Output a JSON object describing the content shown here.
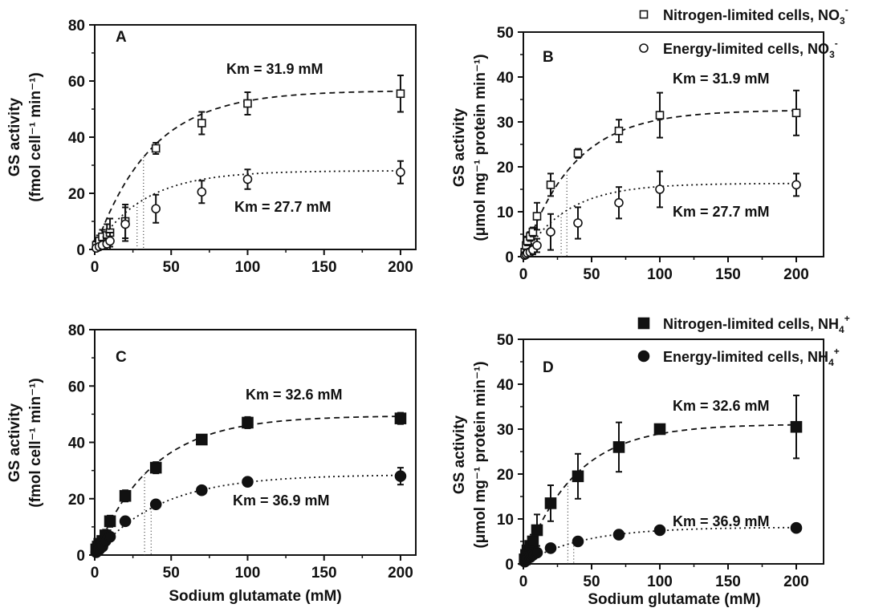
{
  "chart_data": [
    {
      "type": "scatter",
      "panel": "A",
      "xlabel": "",
      "ylabel": "GS activity",
      "ylabel_unit": "(fmol cell⁻¹ min⁻¹)",
      "xlim": [
        0,
        210
      ],
      "ylim": [
        0,
        80
      ],
      "x_ticks": [
        0,
        50,
        100,
        150,
        200
      ],
      "y_ticks": [
        0,
        20,
        40,
        60,
        80
      ],
      "series": [
        {
          "marker": "open-square",
          "fit": "dashed",
          "km": 31.9,
          "x": [
            1,
            3,
            5,
            8,
            10,
            20,
            40,
            70,
            100,
            200
          ],
          "y": [
            1.5,
            3,
            4.5,
            5,
            6,
            10,
            36,
            45,
            52,
            55.5
          ],
          "err": [
            1.5,
            2,
            2.5,
            4,
            5,
            6,
            2,
            4,
            4,
            6.5
          ]
        },
        {
          "marker": "open-circle",
          "fit": "dotted",
          "km": 27.7,
          "x": [
            1,
            3,
            5,
            8,
            10,
            20,
            40,
            70,
            100,
            200
          ],
          "y": [
            0.5,
            1,
            1.5,
            2,
            3,
            9,
            14.5,
            20.5,
            25,
            27.5
          ],
          "err": [
            1,
            1,
            1.5,
            2,
            3,
            6,
            5,
            4,
            3.5,
            4
          ]
        }
      ],
      "annotations": [
        "Km = 31.9 mM",
        "Km = 27.7 mM"
      ]
    },
    {
      "type": "scatter",
      "panel": "B",
      "xlabel": "",
      "ylabel": "GS activity",
      "ylabel_unit": "(μmol mg⁻¹ protein min⁻¹)",
      "xlim": [
        0,
        220
      ],
      "ylim": [
        0,
        50
      ],
      "x_ticks": [
        0,
        50,
        100,
        150,
        200
      ],
      "y_ticks": [
        0,
        10,
        20,
        30,
        40,
        50
      ],
      "series": [
        {
          "name": "Nitrogen-limited cells, NO3-",
          "marker": "open-square",
          "fit": "dashed",
          "km": 31.9,
          "x": [
            1,
            2,
            3,
            5,
            7,
            10,
            20,
            40,
            70,
            100,
            200
          ],
          "y": [
            1,
            2.5,
            3.5,
            4.5,
            5.5,
            9,
            16,
            23,
            28,
            31.5,
            32
          ],
          "err": [
            0.5,
            1,
            1,
            1,
            1,
            3,
            2.5,
            1,
            2.5,
            5,
            5
          ]
        },
        {
          "name": "Energy-limited cells, NO3-",
          "marker": "open-circle",
          "fit": "dotted",
          "km": 27.7,
          "x": [
            1,
            2,
            3,
            5,
            7,
            10,
            20,
            40,
            70,
            100,
            200
          ],
          "y": [
            0.3,
            0.5,
            0.8,
            1,
            1.5,
            2.5,
            5.5,
            7.5,
            12,
            15,
            16
          ],
          "err": [
            0.5,
            0.5,
            0.5,
            0.8,
            1,
            1.5,
            4,
            3.5,
            3.5,
            4,
            2.5
          ]
        }
      ],
      "annotations": [
        "Km = 31.9 mM",
        "Km = 27.7 mM"
      ]
    },
    {
      "type": "scatter",
      "panel": "C",
      "xlabel": "Sodium glutamate (mM)",
      "ylabel": "GS activity",
      "ylabel_unit": "(fmol cell⁻¹ min⁻¹)",
      "xlim": [
        0,
        210
      ],
      "ylim": [
        0,
        80
      ],
      "x_ticks": [
        0,
        50,
        100,
        150,
        200
      ],
      "y_ticks": [
        0,
        20,
        40,
        60,
        80
      ],
      "series": [
        {
          "marker": "filled-square",
          "fit": "dashed",
          "km": 32.6,
          "x": [
            1,
            2,
            3,
            5,
            7,
            10,
            20,
            40,
            70,
            100,
            200
          ],
          "y": [
            2,
            3,
            4,
            5,
            7,
            12,
            21,
            31,
            41,
            47,
            48.5
          ],
          "err": [
            0.5,
            0.5,
            1,
            1,
            2,
            2,
            2,
            2,
            1,
            2,
            2
          ]
        },
        {
          "marker": "filled-circle",
          "fit": "dotted",
          "km": 36.9,
          "x": [
            1,
            2,
            3,
            5,
            7,
            10,
            20,
            40,
            70,
            100,
            200
          ],
          "y": [
            1,
            1.5,
            2,
            3,
            5,
            6.5,
            12,
            18,
            23,
            26,
            28
          ],
          "err": [
            0.5,
            0.5,
            0.5,
            1,
            1,
            1,
            1,
            1,
            1,
            1,
            3
          ]
        }
      ],
      "annotations": [
        "Km = 32.6 mM",
        "Km = 36.9 mM"
      ]
    },
    {
      "type": "scatter",
      "panel": "D",
      "xlabel": "Sodium glutamate (mM)",
      "ylabel": "GS activity",
      "ylabel_unit": "(μmol mg⁻¹ protein min⁻¹)",
      "xlim": [
        0,
        220
      ],
      "ylim": [
        0,
        50
      ],
      "x_ticks": [
        0,
        50,
        100,
        150,
        200
      ],
      "y_ticks": [
        0,
        10,
        20,
        30,
        40,
        50
      ],
      "series": [
        {
          "name": "Nitrogen-limited cells, NH4+",
          "marker": "filled-square",
          "fit": "dashed",
          "km": 32.6,
          "x": [
            1,
            2,
            3,
            5,
            7,
            10,
            20,
            40,
            70,
            100,
            200
          ],
          "y": [
            1,
            2,
            3,
            4,
            5,
            7.5,
            13.5,
            19.5,
            26,
            30,
            30.5
          ],
          "err": [
            0.5,
            0.5,
            1,
            1,
            1.5,
            3.5,
            4,
            5,
            5.5,
            0,
            7
          ]
        },
        {
          "name": "Energy-limited cells, NH4+",
          "marker": "filled-circle",
          "fit": "dotted",
          "km": 36.9,
          "x": [
            1,
            2,
            3,
            5,
            7,
            10,
            20,
            40,
            70,
            100,
            200
          ],
          "y": [
            0.5,
            1,
            1.2,
            1.5,
            2,
            2.5,
            3.5,
            5,
            6.5,
            7.5,
            8
          ],
          "err": [
            0.2,
            0.2,
            0.2,
            0.3,
            0.3,
            0.3,
            0.3,
            0.3,
            0.3,
            0.3,
            0.3
          ]
        }
      ],
      "annotations": [
        "Km = 32.6 mM",
        "Km = 36.9 mM"
      ]
    }
  ]
}
